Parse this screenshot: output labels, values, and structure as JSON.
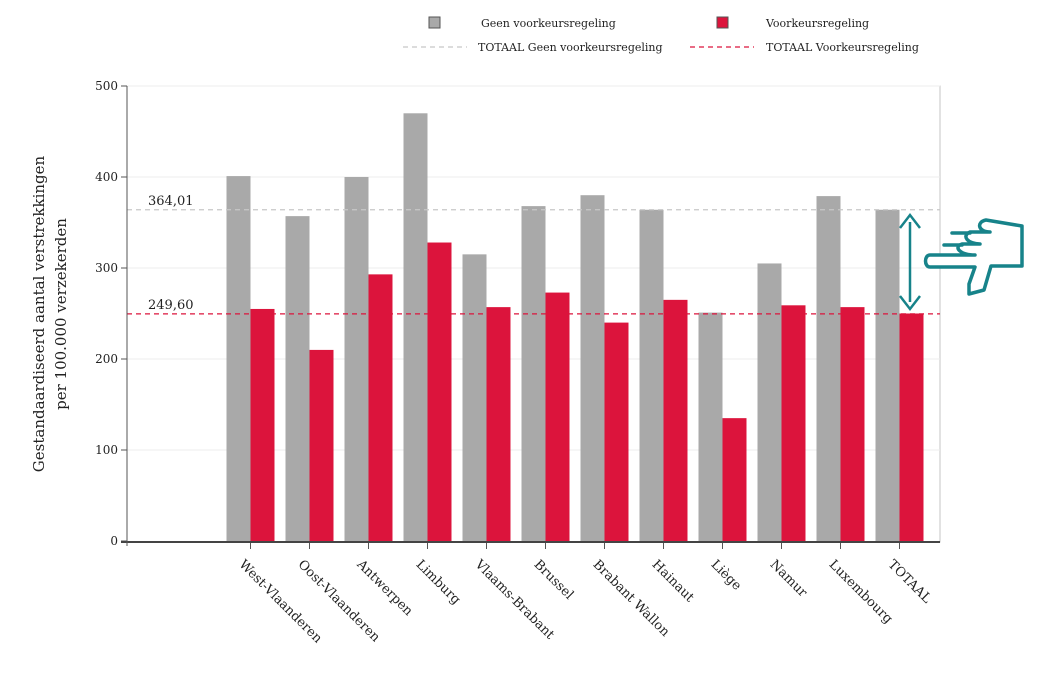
{
  "chart_data": {
    "type": "bar",
    "categories": [
      "West-Vlaanderen",
      "Oost-Vlaanderen",
      "Antwerpen",
      "Limburg",
      "Vlaams-Brabant",
      "Brussel",
      "Brabant Wallon",
      "Hainaut",
      "Liège",
      "Namur",
      "Luxembourg",
      "TOTAAL"
    ],
    "series": [
      {
        "name": "Geen voorkeursregeling",
        "color": "#a9a9a9",
        "values": [
          401,
          357,
          400,
          470,
          315,
          368,
          380,
          364,
          251,
          305,
          379,
          364
        ]
      },
      {
        "name": "Voorkeursregeling",
        "color": "#dc143c",
        "values": [
          255,
          210,
          293,
          328,
          257,
          273,
          240,
          265,
          135,
          259,
          257,
          250
        ]
      }
    ],
    "reference_lines": [
      {
        "name": "TOTAAL Geen voorkeursregeling",
        "value": 364.01,
        "label": "364,01",
        "color": "#c8c8c8",
        "style": "dashed"
      },
      {
        "name": "TOTAAL Voorkeursregeling",
        "value": 249.6,
        "label": "249,60",
        "color": "#dc143c",
        "style": "dashed"
      }
    ],
    "title": "",
    "xlabel": "",
    "ylabel_lines": [
      "Gestandaardiseerd aantal verstrekkingen",
      "per 100.000 verzekerden"
    ],
    "ylim": [
      0,
      500
    ],
    "yticks": [
      0,
      100,
      200,
      300,
      400,
      500
    ],
    "grid": true,
    "legend_position": "top"
  },
  "annotation": {
    "arrow_color": "#17838a",
    "icon": "pointing-hand-icon"
  }
}
